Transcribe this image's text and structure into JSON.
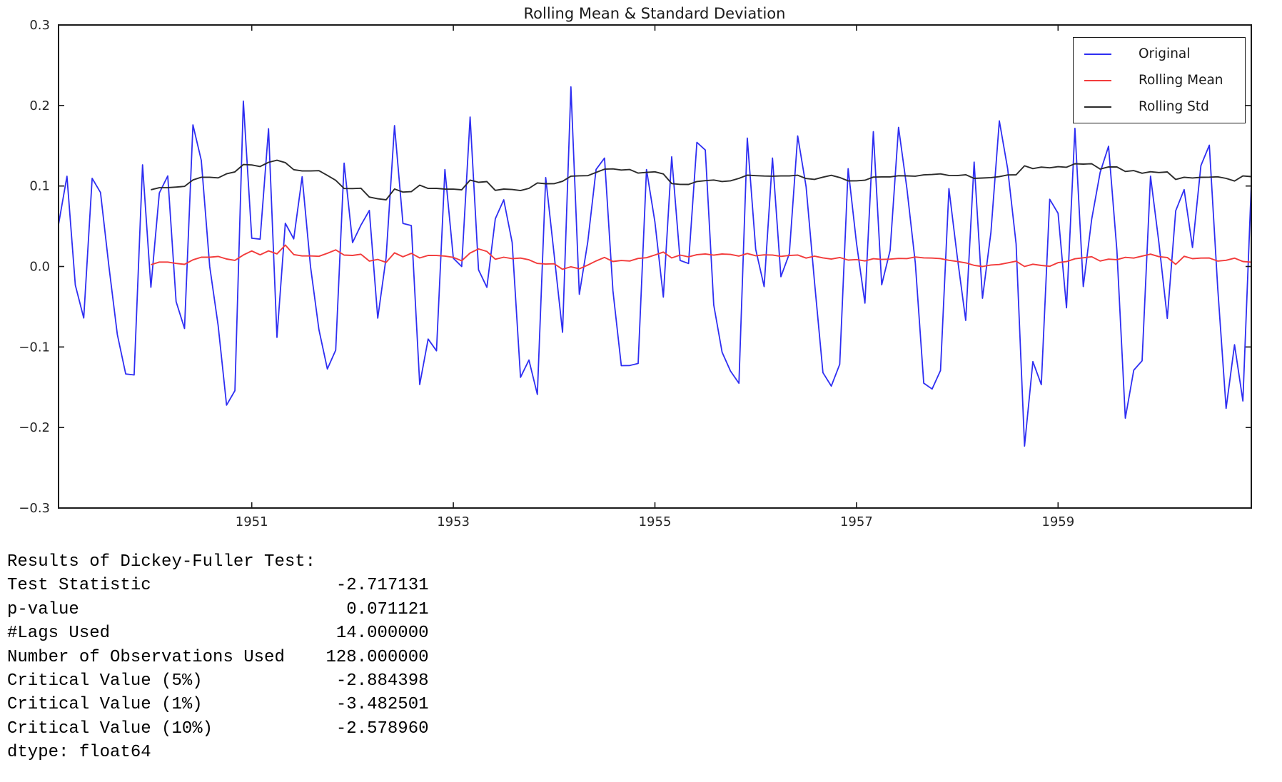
{
  "chart_data": {
    "type": "line",
    "title": "Rolling Mean & Standard Deviation",
    "xlabel": "",
    "ylabel": "",
    "xlim": [
      1949.0833,
      1960.9167
    ],
    "ylim": [
      -0.3,
      0.3
    ],
    "xticks": [
      1951,
      1953,
      1955,
      1957,
      1959
    ],
    "yticks": [
      0.3,
      0.2,
      0.1,
      0.0,
      -0.1,
      -0.2,
      -0.3
    ],
    "grid": false,
    "legend_position": "upper right",
    "x_start": "1949-02",
    "x_step_years": 0.0833,
    "rolling_window": 12,
    "series": [
      {
        "name": "Original",
        "color": "#2e2ef2",
        "values": [
          0.0522,
          0.1121,
          -0.023,
          -0.064,
          0.1095,
          0.0919,
          0.0,
          -0.0846,
          -0.1335,
          -0.1347,
          0.1263,
          -0.0258,
          0.0913,
          0.1125,
          -0.0435,
          -0.077,
          0.1759,
          0.1318,
          0.0,
          -0.0732,
          -0.1722,
          -0.1542,
          0.2054,
          0.0351,
          0.0339,
          0.1711,
          -0.088,
          0.0537,
          0.0343,
          0.1116,
          0.0,
          -0.0784,
          -0.1273,
          -0.104,
          0.1284,
          0.0297,
          0.0513,
          0.0697,
          -0.0642,
          0.011,
          0.175,
          0.0535,
          0.0509,
          -0.1466,
          -0.0901,
          -0.1048,
          0.1204,
          0.0103,
          0.0,
          0.1857,
          -0.0042,
          -0.0259,
          0.0593,
          0.0829,
          0.0299,
          -0.1376,
          -0.1162,
          -0.1589,
          0.1104,
          0.0148,
          -0.0817,
          0.2231,
          -0.0346,
          0.0304,
          0.1206,
          0.1346,
          -0.0303,
          -0.1232,
          -0.123,
          -0.1204,
          0.1204,
          0.0552,
          -0.0379,
          0.1362,
          0.0075,
          0.0037,
          0.1542,
          0.1446,
          -0.0478,
          -0.1064,
          -0.1299,
          -0.145,
          0.1595,
          0.0214,
          -0.025,
          0.1347,
          -0.0127,
          0.0159,
          0.1622,
          0.0991,
          -0.0196,
          -0.1319,
          -0.1485,
          -0.1215,
          0.1215,
          0.029,
          -0.0455,
          0.1675,
          -0.0227,
          0.0199,
          0.1728,
          0.097,
          0.0043,
          -0.1449,
          -0.1522,
          -0.1291,
          0.0968,
          0.0118,
          -0.0669,
          0.1297,
          -0.0394,
          0.0422,
          0.1809,
          0.1212,
          0.0281,
          -0.2231,
          -0.1181,
          -0.1468,
          0.0835,
          0.066,
          -0.0513,
          0.1716,
          -0.0249,
          0.0588,
          0.1167,
          0.1493,
          0.0199,
          -0.1884,
          -0.1289,
          -0.1171,
          0.1122,
          0.0292,
          -0.0644,
          0.0692,
          0.0955,
          0.0236,
          0.1253,
          0.1507,
          -0.0261,
          -0.1763,
          -0.0971,
          -0.1671,
          0.1022
        ]
      },
      {
        "name": "Rolling Mean",
        "color": "#f23b3b",
        "derived": "rolling_mean_of_series_0"
      },
      {
        "name": "Rolling Std",
        "color": "#2b2b2b",
        "derived": "rolling_std_of_series_0"
      }
    ]
  },
  "stats": {
    "heading": "Results of Dickey-Fuller Test:",
    "rows": [
      {
        "label": "Test Statistic",
        "value": "-2.717131"
      },
      {
        "label": "p-value",
        "value": "0.071121"
      },
      {
        "label": "#Lags Used",
        "value": "14.000000"
      },
      {
        "label": "Number of Observations Used",
        "value": "128.000000"
      },
      {
        "label": "Critical Value (5%)",
        "value": "-2.884398"
      },
      {
        "label": "Critical Value (1%)",
        "value": "-3.482501"
      },
      {
        "label": "Critical Value (10%)",
        "value": "-2.578960"
      }
    ],
    "footer": "dtype: float64",
    "label_col_width": 27,
    "value_col_width": 14
  }
}
